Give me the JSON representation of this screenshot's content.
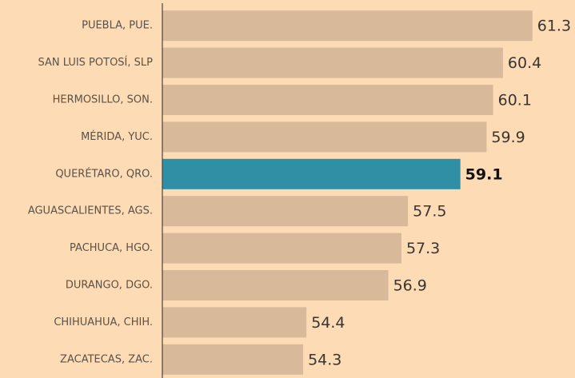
{
  "chart_data": {
    "type": "barh",
    "categories": [
      "PUEBLA, PUE.",
      "SAN LUIS POTOSÍ, SLP",
      "HERMOSILLO, SON.",
      "MÉRIDA, YUC.",
      "QUERÉTARO, QRO.",
      "AGUASCALIENTES, AGS.",
      "PACHUCA, HGO.",
      "DURANGO, DGO.",
      "CHIHUAHUA, CHIH.",
      "ZACATECAS, ZAC."
    ],
    "values": [
      61.3,
      60.4,
      60.1,
      59.9,
      59.1,
      57.5,
      57.3,
      56.9,
      54.4,
      54.3
    ],
    "colors": [
      "#d8b999",
      "#d8b999",
      "#d8b999",
      "#d8b999",
      "#2f8fa5",
      "#d8b999",
      "#d8b999",
      "#d8b999",
      "#d8b999",
      "#d8b999"
    ],
    "highlight": 4,
    "xlim": [
      50,
      62.6
    ]
  }
}
